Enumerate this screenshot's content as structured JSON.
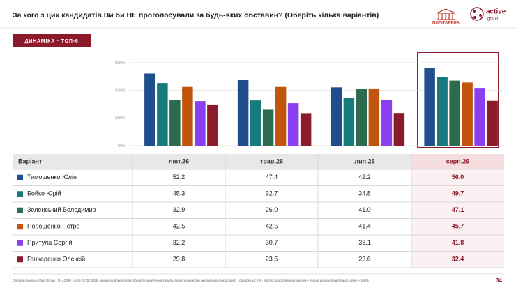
{
  "chart_data": {
    "type": "bar",
    "title": "За кого з цих кандидатів Ви би НЕ проголосували за будь-яких обставин? (Оберіть кілька варіантів)",
    "categories": [
      "лют.26",
      "трав.26",
      "лип.26",
      "серп.26"
    ],
    "series": [
      {
        "name": "Тимошенко Юлія",
        "color": "#1f4e8c",
        "values": [
          52.2,
          47.4,
          42.2,
          56.0
        ],
        "value_labels": [
          "52.2",
          "47.4",
          "42.2",
          "56.0"
        ]
      },
      {
        "name": "Бойко Юрій",
        "color": "#177a7c",
        "values": [
          45.3,
          32.7,
          34.8,
          49.7
        ],
        "value_labels": [
          "45.3",
          "32.7",
          "34.8",
          "49.7"
        ]
      },
      {
        "name": "Зеленський Володимир",
        "color": "#2c6b4e",
        "values": [
          32.9,
          26.0,
          41.0,
          47.1
        ],
        "value_labels": [
          "32.9",
          "26.0",
          "41.0",
          "47.1"
        ]
      },
      {
        "name": "Порошенко Петро",
        "color": "#c0560e",
        "values": [
          42.5,
          42.5,
          41.4,
          45.7
        ],
        "value_labels": [
          "42.5",
          "42.5",
          "41.4",
          "45.7"
        ]
      },
      {
        "name": "Притула Сергій",
        "color": "#8a3ff0",
        "values": [
          32.2,
          30.7,
          33.1,
          41.8
        ],
        "value_labels": [
          "32.2",
          "30.7",
          "33.1",
          "41.8"
        ]
      },
      {
        "name": "Гончаренко Олексій",
        "color": "#8b1a2a",
        "values": [
          29.8,
          23.5,
          23.6,
          32.4
        ],
        "value_labels": [
          "29.8",
          "23.5",
          "23.6",
          "32.4"
        ]
      }
    ],
    "ylim": [
      0,
      60
    ],
    "yticks": [
      {
        "value": 0,
        "label": "0%"
      },
      {
        "value": 20,
        "label": "20%"
      },
      {
        "value": 40,
        "label": "40%"
      },
      {
        "value": 60,
        "label": "60%"
      }
    ],
    "grid": true
  },
  "badge": "ДИНАМІКА · ТОП-6",
  "logos": [
    "ПОЛІТАРЕНА",
    "active",
    "group"
  ],
  "table": {
    "header": "Варіант"
  },
  "footer": {
    "note": "Онлайн-панель Active Group · N = 2000 · поле 22.08.2026 · вибірка репрезентує доросле населення України (крім тимчасово окупованих територій) · похибка ±2.2% · топ-6 за останньою хвилею · кілька варіантів відповіді, сума > 100%",
    "page": "34"
  }
}
